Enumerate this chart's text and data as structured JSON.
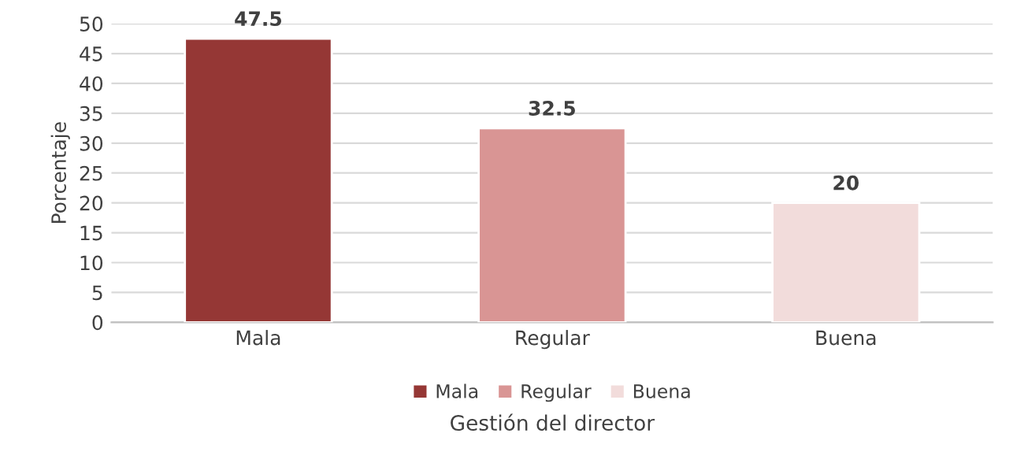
{
  "chart_data": {
    "type": "bar",
    "xlabel": "Gestión del director",
    "ylabel": "Porcentaje",
    "categories": [
      "Mala",
      "Regular",
      "Buena"
    ],
    "series": [
      {
        "name": "Mala",
        "color": "#953735",
        "values": [
          47.5,
          null,
          null
        ]
      },
      {
        "name": "Regular",
        "color": "#d99594",
        "values": [
          null,
          32.5,
          null
        ]
      },
      {
        "name": "Buena",
        "color": "#f2dcdb",
        "values": [
          null,
          null,
          20
        ]
      }
    ],
    "stacked": true,
    "ylim": [
      0,
      50
    ],
    "yticks": [
      0,
      5,
      10,
      15,
      20,
      25,
      30,
      35,
      40,
      45,
      50
    ],
    "grid": "y",
    "legend": "bottom",
    "data_labels": true
  }
}
